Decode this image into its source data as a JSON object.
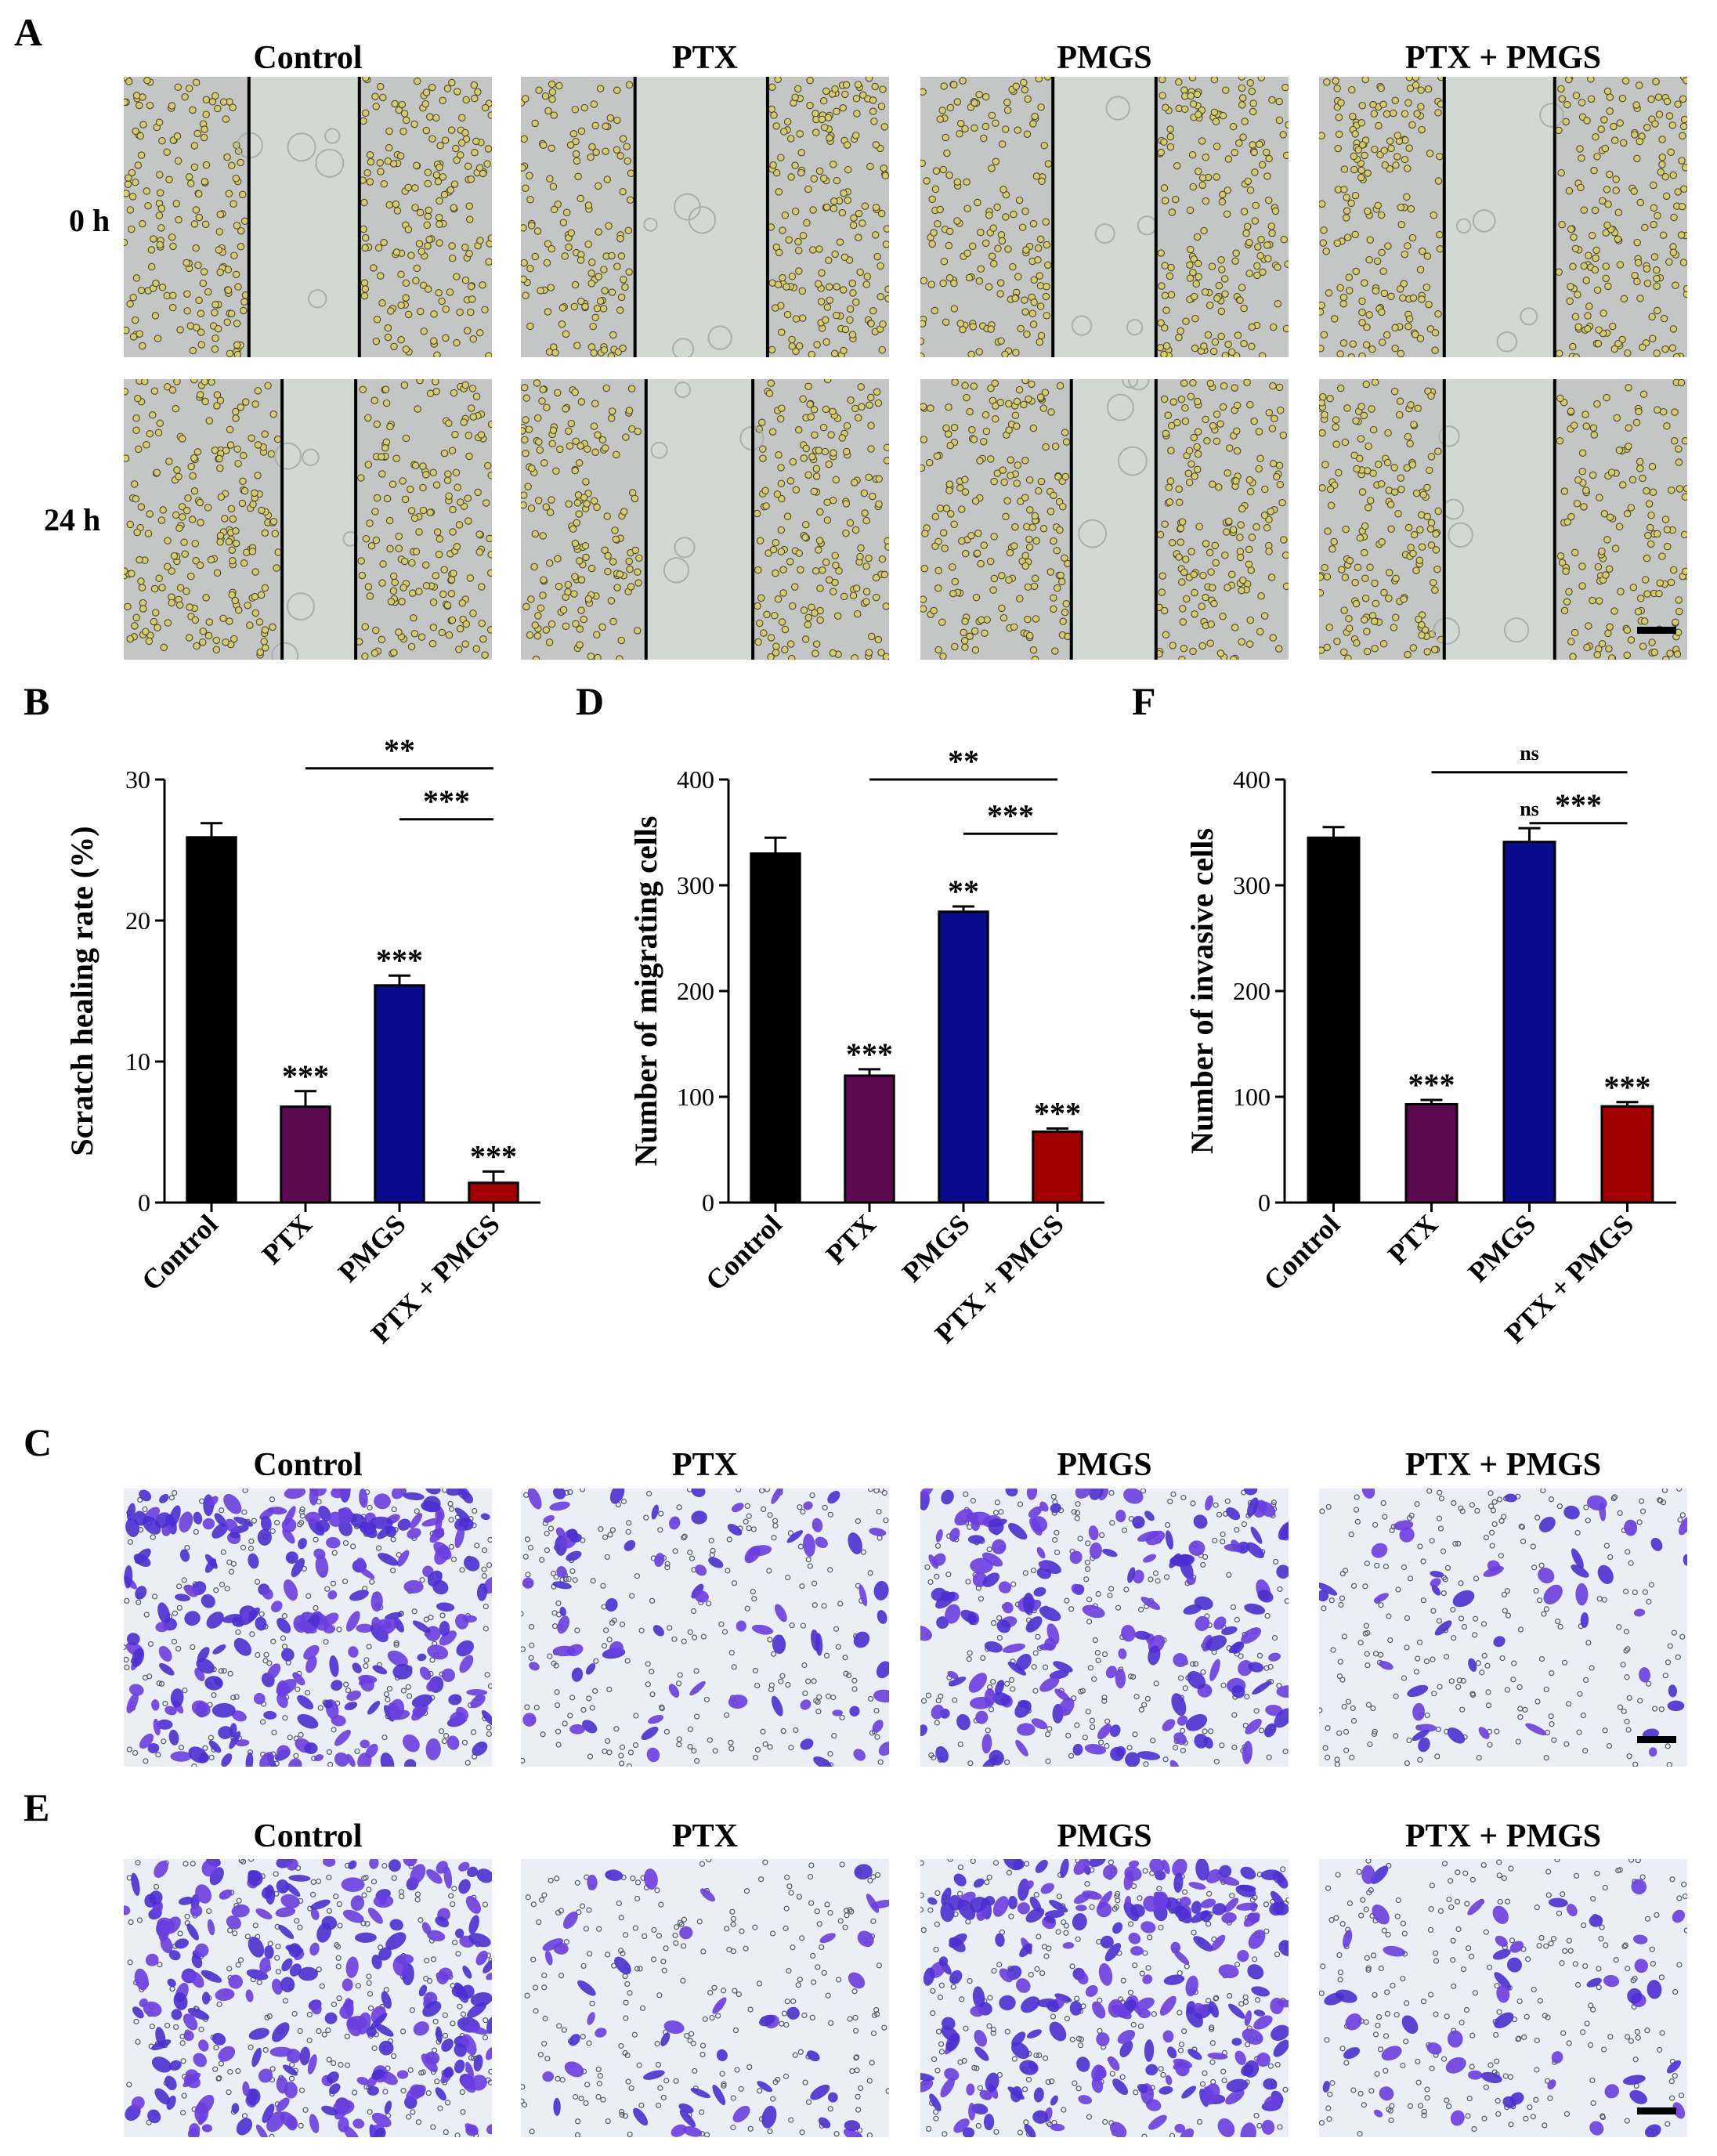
{
  "panel_letters": {
    "A": "A",
    "B": "B",
    "C": "C",
    "D": "D",
    "E": "E",
    "F": "F"
  },
  "groups": [
    "Control",
    "PTX",
    "PMGS",
    "PTX + PMGS"
  ],
  "scratch_rows": [
    "0 h",
    "24 h"
  ],
  "colors": {
    "Control": "#000000",
    "PTX": "#5b0a4f",
    "PMGS": "#0a0a8c",
    "PTX + PMGS": "#a00000",
    "scratch_background": "#c9cfc8",
    "cell": "#b8a86a",
    "transwell_stain": "#4a2fd0"
  },
  "chart_data": [
    {
      "panel": "B",
      "type": "bar",
      "categories": [
        "Control",
        "PTX",
        "PMGS",
        "PTX + PMGS"
      ],
      "values": [
        25.9,
        6.8,
        15.4,
        1.4
      ],
      "errors": [
        1.0,
        1.1,
        0.7,
        0.8
      ],
      "ylabel": "Scratch healing rate (%)",
      "ylim": [
        0,
        30
      ],
      "yticks": [
        0,
        10,
        20,
        30
      ],
      "bar_annotations": [
        "",
        "***",
        "***",
        "***"
      ],
      "brackets": [
        {
          "from": "PTX",
          "to": "PTX + PMGS",
          "label": "**"
        },
        {
          "from": "PMGS",
          "to": "PTX + PMGS",
          "label": "***"
        }
      ]
    },
    {
      "panel": "D",
      "type": "bar",
      "categories": [
        "Control",
        "PTX",
        "PMGS",
        "PTX + PMGS"
      ],
      "values": [
        330,
        120,
        275,
        67
      ],
      "errors": [
        15,
        6,
        5,
        3
      ],
      "ylabel": "Number of migrating cells",
      "ylim": [
        0,
        400
      ],
      "yticks": [
        0,
        100,
        200,
        300,
        400
      ],
      "bar_annotations": [
        "",
        "***",
        "**",
        "***"
      ],
      "brackets": [
        {
          "from": "PTX",
          "to": "PTX + PMGS",
          "label": "**"
        },
        {
          "from": "PMGS",
          "to": "PTX + PMGS",
          "label": "***"
        }
      ]
    },
    {
      "panel": "F",
      "type": "bar",
      "categories": [
        "Control",
        "PTX",
        "PMGS",
        "PTX + PMGS"
      ],
      "values": [
        345,
        93,
        341,
        91
      ],
      "errors": [
        10,
        4,
        13,
        4
      ],
      "ylabel": "Number of invasive cells",
      "ylim": [
        0,
        400
      ],
      "yticks": [
        0,
        100,
        200,
        300,
        400
      ],
      "bar_annotations": [
        "",
        "***",
        "ns",
        "***"
      ],
      "brackets": [
        {
          "from": "PTX",
          "to": "PTX + PMGS",
          "label": "ns"
        },
        {
          "from": "PMGS",
          "to": "PTX + PMGS",
          "label": "***"
        }
      ]
    }
  ]
}
